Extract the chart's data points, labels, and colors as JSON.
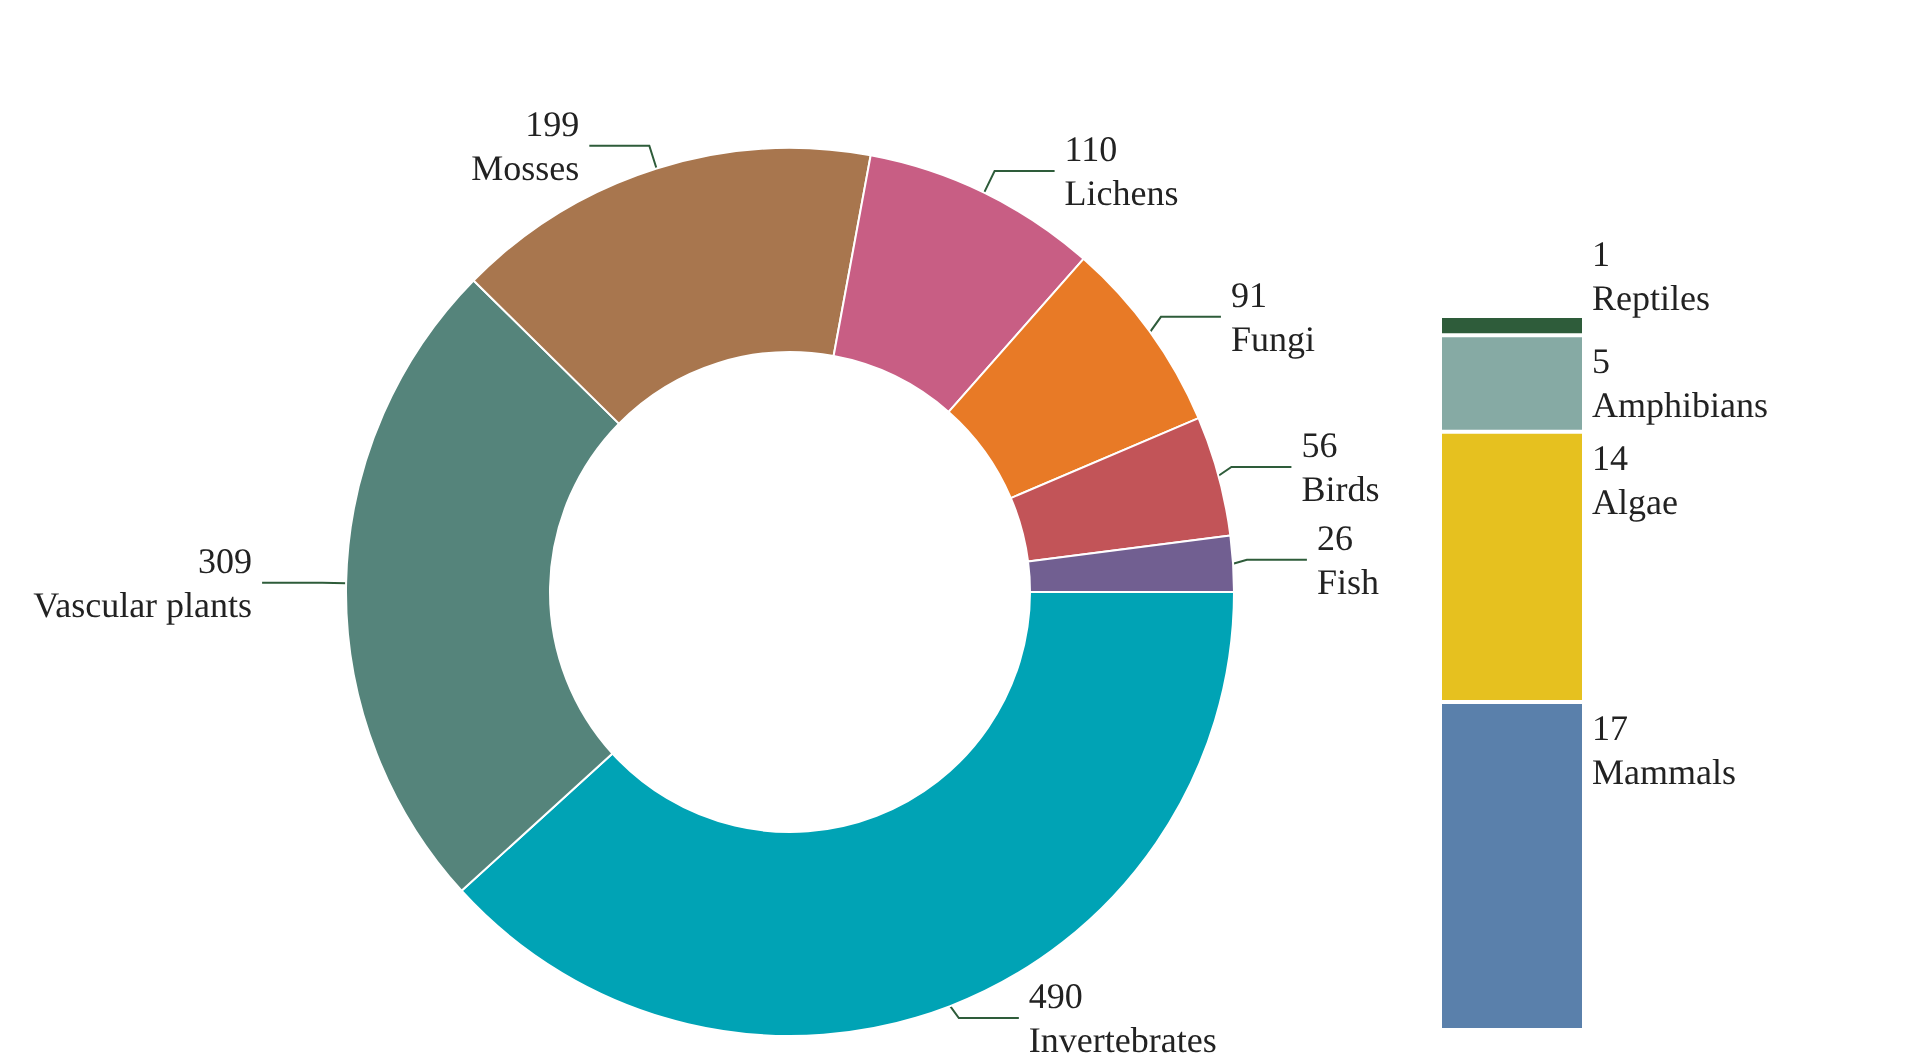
{
  "chart_data": [
    {
      "type": "donut",
      "categories": [
        "Invertebrates",
        "Vascular plants",
        "Mosses",
        "Lichens",
        "Fungi",
        "Birds",
        "Fish"
      ],
      "values": [
        490,
        309,
        199,
        110,
        91,
        56,
        26
      ],
      "colors": [
        "#00a3b5",
        "#55847b",
        "#a8764e",
        "#c85e84",
        "#e87a26",
        "#c25458",
        "#715f91"
      ],
      "data_labels": true,
      "legend": false
    },
    {
      "type": "bar",
      "stacked": true,
      "categories": [
        null
      ],
      "data_labels": true,
      "legend": false,
      "tick_labels": false,
      "series": [
        {
          "name": "Mammals",
          "color": "#5a80ab",
          "values": [
            17
          ]
        },
        {
          "name": "Algae",
          "color": "#e6c11f",
          "values": [
            14
          ]
        },
        {
          "name": "Amphibians",
          "color": "#86aaa4",
          "values": [
            5
          ]
        },
        {
          "name": "Reptiles",
          "color": "#2e5c3a",
          "values": [
            1
          ]
        }
      ]
    }
  ]
}
